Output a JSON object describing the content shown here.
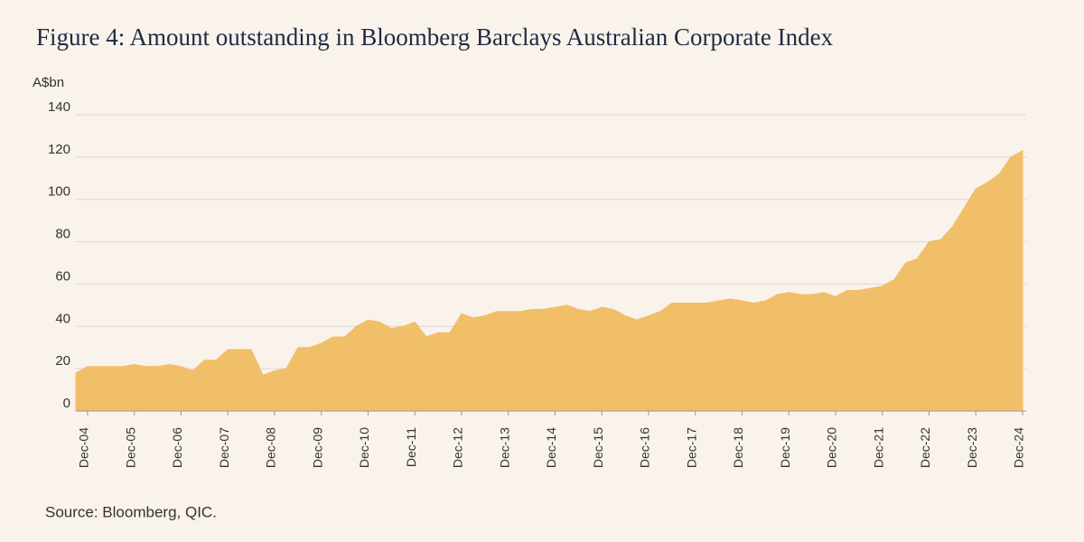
{
  "chart_data": {
    "type": "area",
    "title": "Figure 4: Amount outstanding in Bloomberg Barclays Australian Corporate Index",
    "y_label": "A$bn",
    "source": "Source: Bloomberg, QIC.",
    "color": "#f0bf68",
    "grid": true,
    "ylim": [
      0,
      140
    ],
    "yticks": [
      0,
      20,
      40,
      60,
      80,
      100,
      120,
      140
    ],
    "categories": [
      null,
      "Dec-04",
      null,
      null,
      null,
      "Dec-05",
      null,
      null,
      null,
      "Dec-06",
      null,
      null,
      null,
      "Dec-07",
      null,
      null,
      null,
      "Dec-08",
      null,
      null,
      null,
      "Dec-09",
      null,
      null,
      null,
      "Dec-10",
      null,
      null,
      null,
      "Dec-11",
      null,
      null,
      null,
      "Dec-12",
      null,
      null,
      null,
      "Dec-13",
      null,
      null,
      null,
      "Dec-14",
      null,
      null,
      null,
      "Dec-15",
      null,
      null,
      null,
      "Dec-16",
      null,
      null,
      null,
      "Dec-17",
      null,
      null,
      null,
      "Dec-18",
      null,
      null,
      null,
      "Dec-19",
      null,
      null,
      null,
      "Dec-20",
      null,
      null,
      null,
      "Dec-21",
      null,
      null,
      null,
      "Dec-22",
      null,
      null,
      null,
      "Dec-23",
      null,
      null,
      null,
      "Dec-24"
    ],
    "values": [
      18,
      21,
      21,
      21,
      21,
      22,
      21,
      21,
      22,
      21,
      19,
      24,
      24,
      29,
      29,
      29,
      17,
      19,
      20,
      30,
      30,
      32,
      35,
      35,
      40,
      43,
      42,
      39,
      40,
      42,
      35,
      37,
      37,
      46,
      44,
      45,
      47,
      47,
      47,
      48,
      48,
      49,
      50,
      48,
      47,
      49,
      48,
      45,
      43,
      45,
      47,
      51,
      51,
      51,
      51,
      52,
      53,
      52,
      51,
      52,
      55,
      56,
      55,
      55,
      56,
      54,
      57,
      57,
      58,
      59,
      62,
      70,
      72,
      80,
      81,
      87,
      96,
      105,
      108,
      112,
      120,
      123
    ]
  }
}
